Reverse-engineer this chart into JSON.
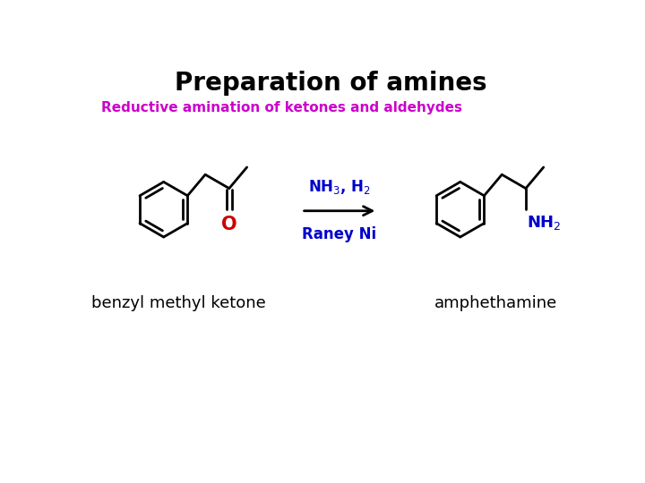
{
  "title": "Preparation of amines",
  "title_fontsize": 20,
  "title_color": "#000000",
  "subtitle": "Reductive amination of ketones and aldehydes",
  "subtitle_color": "#cc00cc",
  "subtitle_fontsize": 11,
  "label_left": "benzyl methyl ketone",
  "label_right": "amphethamine",
  "label_fontsize": 13,
  "label_color": "#000000",
  "arrow_color": "#000000",
  "reagent_color": "#0000cc",
  "O_color": "#cc0000",
  "NH2_color": "#0000cc",
  "bond_color": "#000000",
  "background_color": "#ffffff"
}
